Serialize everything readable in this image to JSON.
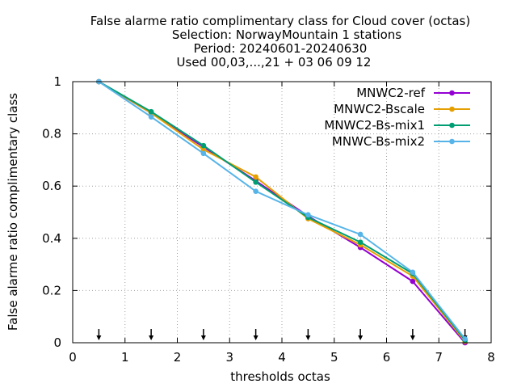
{
  "chart_data": {
    "type": "line",
    "title_lines": [
      "False alarme ratio complimentary class  for Cloud cover (octas)",
      "Selection: NorwayMountain      1 stations",
      "Period: 20240601-20240630",
      "Used 00,03,...,21 + 03 06 09 12"
    ],
    "xlabel": "thresholds octas",
    "ylabel": "False alarme ratio complimentary class",
    "xlim": [
      0,
      8
    ],
    "ylim": [
      0,
      1
    ],
    "xticks": [
      "0",
      "1",
      "2",
      "3",
      "4",
      "5",
      "6",
      "7",
      "8"
    ],
    "yticks": [
      "0",
      "0.2",
      "0.4",
      "0.6",
      "0.8",
      "1"
    ],
    "grid": true,
    "legend_position": "top-right",
    "x": [
      0.5,
      1.5,
      2.5,
      3.5,
      4.5,
      5.5,
      6.5,
      7.5
    ],
    "arrows_x": [
      0.5,
      1.5,
      2.5,
      3.5,
      4.5,
      5.5,
      6.5,
      7.5
    ],
    "series": [
      {
        "name": "MNWC2-ref",
        "color": "#9400d3",
        "values": [
          1.0,
          0.88,
          0.75,
          0.62,
          0.485,
          0.365,
          0.235,
          0.0
        ]
      },
      {
        "name": "MNWC2-Bscale",
        "color": "#e69f00",
        "values": [
          1.0,
          0.88,
          0.74,
          0.635,
          0.475,
          0.375,
          0.255,
          0.005
        ]
      },
      {
        "name": "MNWC2-Bs-mix1",
        "color": "#009e73",
        "values": [
          1.0,
          0.885,
          0.755,
          0.615,
          0.48,
          0.385,
          0.265,
          0.01
        ]
      },
      {
        "name": "MNWC-Bs-mix2",
        "color": "#56b4e9",
        "values": [
          1.0,
          0.865,
          0.725,
          0.58,
          0.49,
          0.415,
          0.27,
          0.015
        ]
      }
    ]
  }
}
